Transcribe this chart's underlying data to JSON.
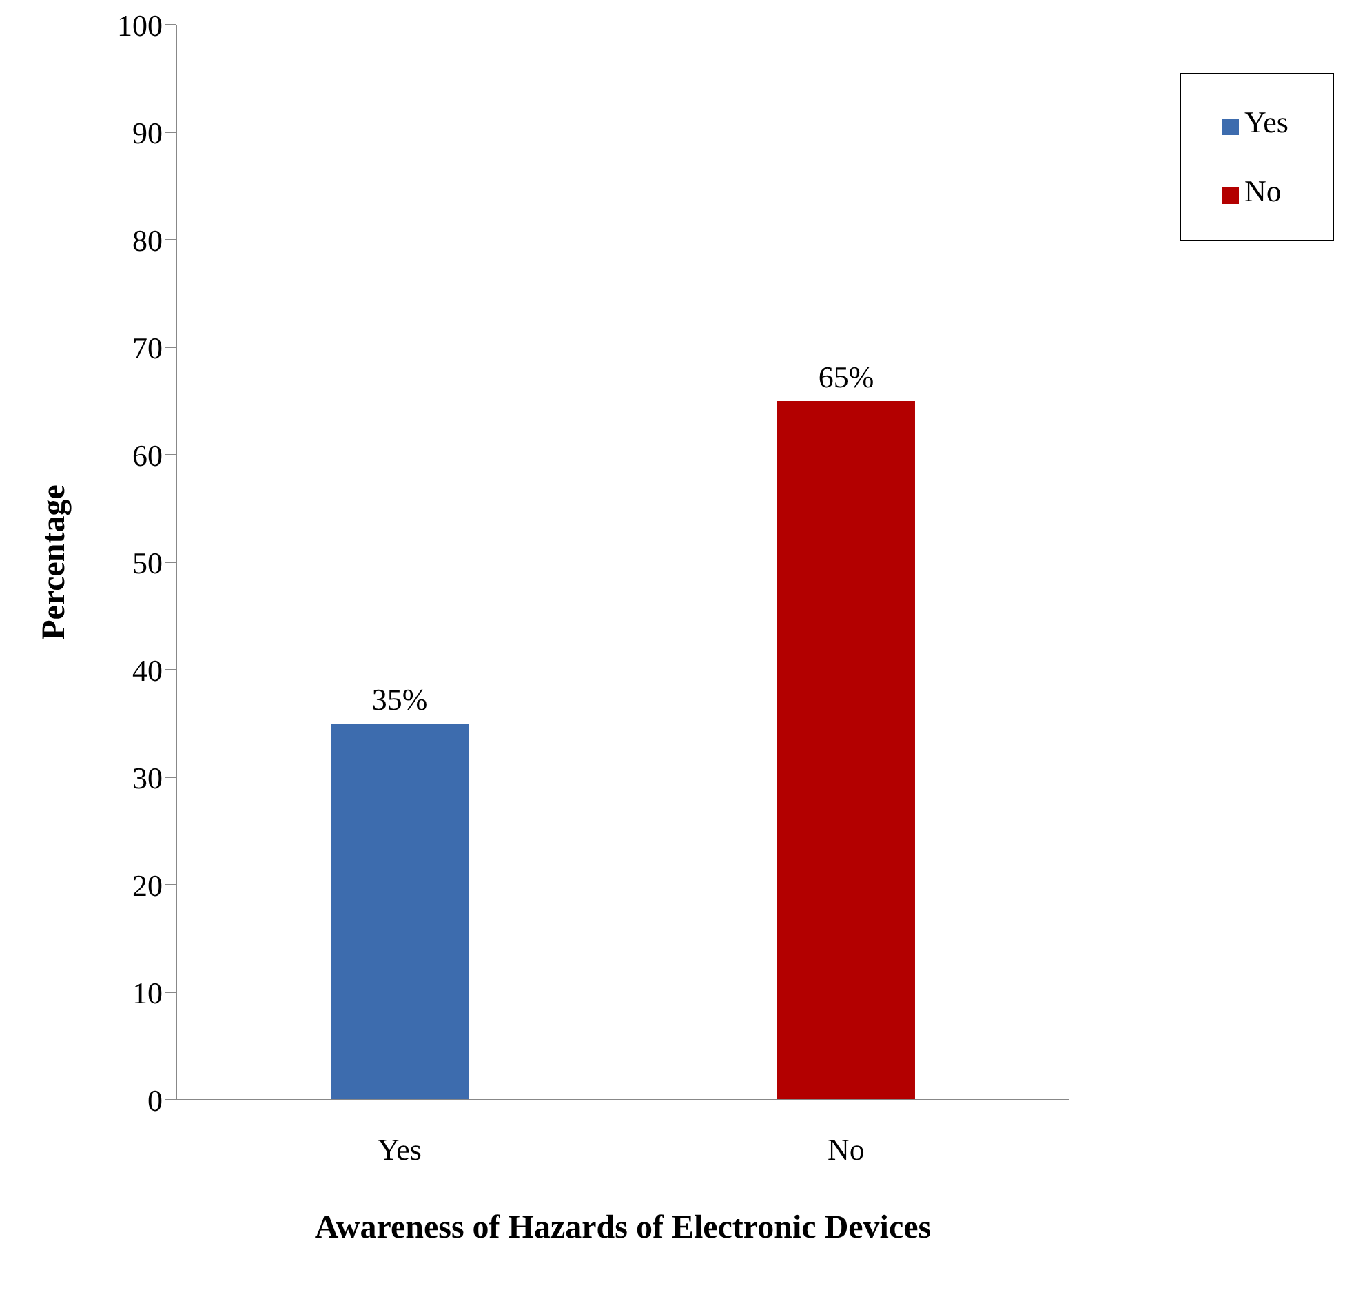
{
  "chart_data": {
    "type": "bar",
    "xlabel": "Awareness of Hazards of Electronic Devices",
    "ylabel": "Percentage",
    "categories": [
      "Yes",
      "No"
    ],
    "series": [
      {
        "name": "Yes",
        "color": "#3d6cae",
        "values": [
          35,
          null
        ],
        "value_labels": [
          "35%",
          null
        ]
      },
      {
        "name": "No",
        "color": "#b30000",
        "values": [
          null,
          65
        ],
        "value_labels": [
          null,
          "65%"
        ]
      }
    ],
    "stacked": true,
    "ylim": [
      0,
      100
    ],
    "yticks": [
      0,
      10,
      20,
      30,
      40,
      50,
      60,
      70,
      80,
      90,
      100
    ],
    "legend": "top right"
  }
}
